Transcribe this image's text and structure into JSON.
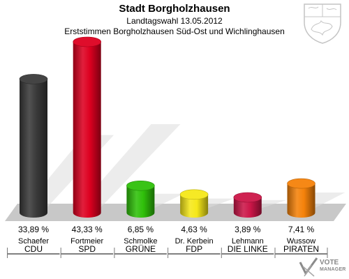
{
  "title": "Stadt Borgholzhausen",
  "subtitle": "Landtagswahl 13.05.2012",
  "description": "Erststimmen Borgholzhausen Süd-Ost und Wichlinghausen",
  "brand": {
    "line1": "VOTE",
    "line2": "MANAGER"
  },
  "colors": {
    "floor": "#c8c8c8",
    "shadow": "#dcdcdc",
    "divider": "#7a7a7a"
  },
  "chart_data": {
    "type": "bar",
    "title": "Stadt Borgholzhausen",
    "subtitle": "Landtagswahl 13.05.2012",
    "description": "Erststimmen Borgholzhausen Süd-Ost und Wichlinghausen",
    "ylim": [
      0,
      43.33
    ],
    "grid": false,
    "bars": [
      {
        "candidate": "Schaefer",
        "party": "CDU",
        "value": 33.89,
        "label": "33,89 %",
        "color": "#3a3a3a"
      },
      {
        "candidate": "Fortmeier",
        "party": "SPD",
        "value": 43.33,
        "label": "43,33 %",
        "color": "#dd0020"
      },
      {
        "candidate": "Schmolke",
        "party": "GRÜNE",
        "value": 6.85,
        "label": "6,85 %",
        "color": "#2fc00a"
      },
      {
        "candidate": "Dr. Kerbein",
        "party": "FDP",
        "value": 4.63,
        "label": "4,63 %",
        "color": "#f6e81a"
      },
      {
        "candidate": "Lehmann",
        "party": "DIE LINKE",
        "value": 3.89,
        "label": "3,89 %",
        "color": "#cc1648"
      },
      {
        "candidate": "Wussow",
        "party": "PIRATEN",
        "value": 7.41,
        "label": "7,41 %",
        "color": "#f5820a"
      }
    ]
  }
}
